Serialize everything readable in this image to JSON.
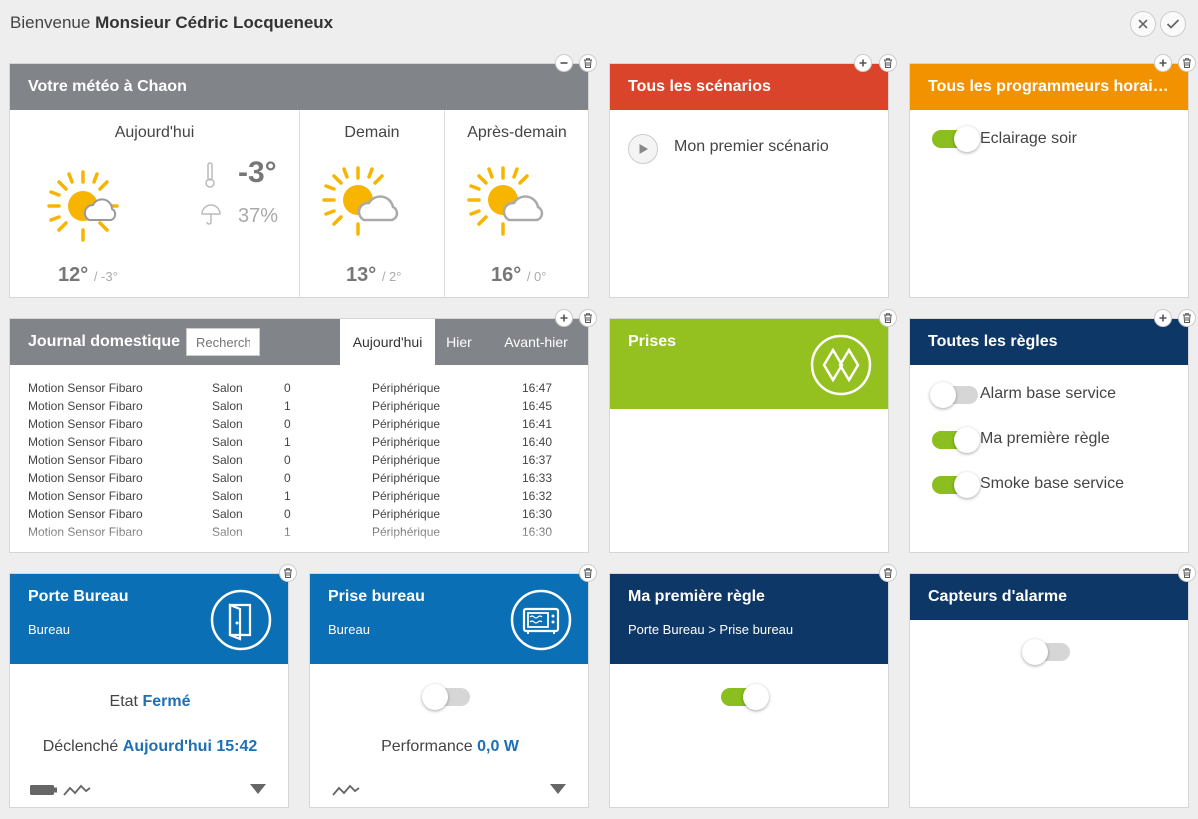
{
  "header": {
    "welcome": "Bienvenue",
    "user": "Monsieur Cédric Locqueneux"
  },
  "weather": {
    "title": "Votre météo à Chaon",
    "today": {
      "label": "Aujourd'hui",
      "temp": "-3°",
      "humidity": "37%",
      "high": "12°",
      "low": "/ -3°"
    },
    "tomorrow": {
      "label": "Demain",
      "high": "13°",
      "low": "/ 2°"
    },
    "after": {
      "label": "Après-demain",
      "high": "16°",
      "low": "/ 0°"
    }
  },
  "scenarios": {
    "title": "Tous les scénarios",
    "items": [
      "Mon premier scénario"
    ]
  },
  "programmers": {
    "title": "Tous les programmeurs horair...",
    "items": [
      {
        "label": "Eclairage soir",
        "on": true
      }
    ]
  },
  "journal": {
    "title": "Journal domestique",
    "search_placeholder": "Recherche",
    "tabs": [
      "Aujourd'hui",
      "Hier",
      "Avant-hier"
    ],
    "rows": [
      [
        "Motion Sensor Fibaro",
        "Salon",
        "0",
        "Périphérique",
        "16:47"
      ],
      [
        "Motion Sensor Fibaro",
        "Salon",
        "1",
        "Périphérique",
        "16:45"
      ],
      [
        "Motion Sensor Fibaro",
        "Salon",
        "0",
        "Périphérique",
        "16:41"
      ],
      [
        "Motion Sensor Fibaro",
        "Salon",
        "1",
        "Périphérique",
        "16:40"
      ],
      [
        "Motion Sensor Fibaro",
        "Salon",
        "0",
        "Périphérique",
        "16:37"
      ],
      [
        "Motion Sensor Fibaro",
        "Salon",
        "0",
        "Périphérique",
        "16:33"
      ],
      [
        "Motion Sensor Fibaro",
        "Salon",
        "1",
        "Périphérique",
        "16:32"
      ],
      [
        "Motion Sensor Fibaro",
        "Salon",
        "0",
        "Périphérique",
        "16:30"
      ],
      [
        "Motion Sensor Fibaro",
        "Salon",
        "1",
        "Périphérique",
        "16:30"
      ]
    ]
  },
  "prises": {
    "title": "Prises"
  },
  "rules": {
    "title": "Toutes les règles",
    "items": [
      {
        "label": "Alarm base service",
        "on": false
      },
      {
        "label": "Ma première règle",
        "on": true
      },
      {
        "label": "Smoke base service",
        "on": true
      }
    ]
  },
  "porte": {
    "title": "Porte Bureau",
    "room": "Bureau",
    "state_label": "Etat",
    "state_value": "Fermé",
    "trig_label": "Déclenché",
    "trig_value": "Aujourd'hui 15:42"
  },
  "prise_bureau": {
    "title": "Prise bureau",
    "room": "Bureau",
    "perf_label": "Performance",
    "perf_value": "0,0 W",
    "on": false
  },
  "rule1": {
    "title": "Ma première règle",
    "subtitle": "Porte Bureau > Prise bureau",
    "on": true
  },
  "alarm": {
    "title": "Capteurs d'alarme",
    "on": false
  },
  "colors": {
    "grey": "#818488",
    "red": "#d9442b",
    "orange": "#f39200",
    "navy": "#0d3766",
    "blue": "#0b6fb6",
    "green": "#94c11f"
  }
}
